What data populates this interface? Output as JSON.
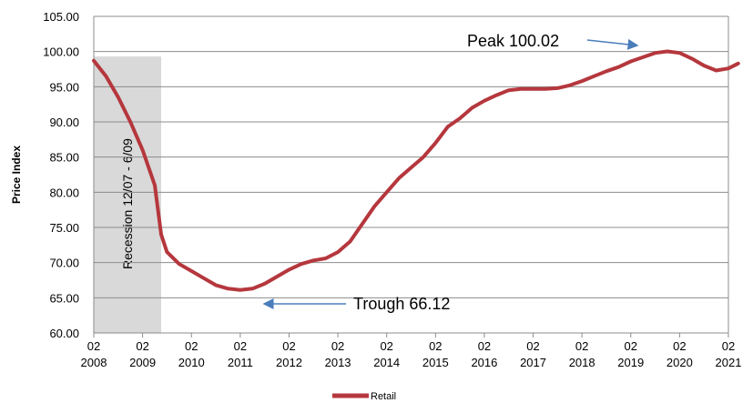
{
  "chart_data": {
    "type": "line",
    "y_label": "Price Index",
    "x": [
      2008,
      2008.25,
      2008.5,
      2008.75,
      2009,
      2009.25,
      2009.38,
      2009.5,
      2009.75,
      2010,
      2010.25,
      2010.5,
      2010.75,
      2011,
      2011.25,
      2011.5,
      2011.75,
      2012,
      2012.25,
      2012.5,
      2012.75,
      2013,
      2013.25,
      2013.5,
      2013.75,
      2014,
      2014.25,
      2014.5,
      2014.75,
      2015,
      2015.25,
      2015.5,
      2015.75,
      2016,
      2016.25,
      2016.5,
      2016.75,
      2017,
      2017.25,
      2017.5,
      2017.75,
      2018,
      2018.25,
      2018.5,
      2018.75,
      2019,
      2019.25,
      2019.5,
      2019.75,
      2020,
      2020.25,
      2020.5,
      2020.75,
      2021,
      2021.2
    ],
    "series": [
      {
        "name": "Retail",
        "color": "#b5373d",
        "values": [
          98.7,
          96.5,
          93.5,
          90,
          86,
          81,
          74,
          71.5,
          69.8,
          68.8,
          67.8,
          66.8,
          66.3,
          66.12,
          66.3,
          67,
          68,
          69,
          69.8,
          70.3,
          70.6,
          71.5,
          73,
          75.5,
          78,
          80,
          82,
          83.5,
          85,
          87,
          89.3,
          90.5,
          92,
          93,
          93.8,
          94.5,
          94.7,
          94.7,
          94.7,
          94.8,
          95.2,
          95.8,
          96.5,
          97.2,
          97.8,
          98.6,
          99.2,
          99.8,
          100.02,
          99.8,
          99,
          98,
          97.3,
          97.6,
          98.3
        ]
      }
    ],
    "xlim": [
      2008,
      2021
    ],
    "xticks": [
      {
        "value": 2008,
        "label": "02 2008"
      },
      {
        "value": 2009,
        "label": "02 2009"
      },
      {
        "value": 2010,
        "label": "02 2010"
      },
      {
        "value": 2011,
        "label": "02 2011"
      },
      {
        "value": 2012,
        "label": "02 2012"
      },
      {
        "value": 2013,
        "label": "02 2013"
      },
      {
        "value": 2014,
        "label": "02 2014"
      },
      {
        "value": 2015,
        "label": "02 2015"
      },
      {
        "value": 2016,
        "label": "02 2016"
      },
      {
        "value": 2017,
        "label": "02 2017"
      },
      {
        "value": 2018,
        "label": "02 2018"
      },
      {
        "value": 2019,
        "label": "02 2019"
      },
      {
        "value": 2020,
        "label": "02 2020"
      },
      {
        "value": 2021,
        "label": "02 2021"
      }
    ],
    "ylim": [
      60,
      105
    ],
    "yticks": [
      {
        "value": 60,
        "label": "60.00"
      },
      {
        "value": 65,
        "label": "65.00"
      },
      {
        "value": 70,
        "label": "70.00"
      },
      {
        "value": 75,
        "label": "75.00"
      },
      {
        "value": 80,
        "label": "80.00"
      },
      {
        "value": 85,
        "label": "85.00"
      },
      {
        "value": 90,
        "label": "90.00"
      },
      {
        "value": 95,
        "label": "95.00"
      },
      {
        "value": 100,
        "label": "100.00"
      },
      {
        "value": 105,
        "label": "105.00"
      }
    ],
    "grid": true,
    "recession": {
      "label": "Recession 12/07 - 6/09",
      "start": 2008,
      "end": 2009.38,
      "top": 99.3,
      "color": "#d9d9d9"
    },
    "annotations": [
      {
        "text": "Peak 100.02"
      },
      {
        "text": "Trough 66.12"
      }
    ],
    "legend": "bottom"
  }
}
